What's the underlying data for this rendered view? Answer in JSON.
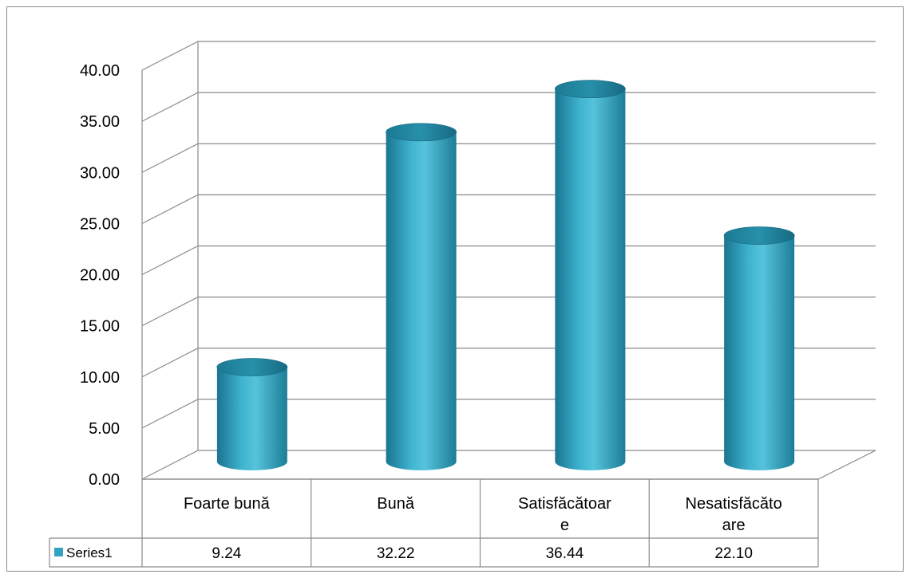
{
  "chart_data": {
    "type": "bar",
    "title": "",
    "xlabel": "",
    "ylabel": "",
    "categories": [
      {
        "lines": [
          "Foarte bună"
        ]
      },
      {
        "lines": [
          "Bună"
        ]
      },
      {
        "lines": [
          "Satisfăcătoar",
          "e"
        ]
      },
      {
        "lines": [
          "Nesatisfăcăto",
          "are"
        ]
      }
    ],
    "series": [
      {
        "name": "Series1",
        "values": [
          9.24,
          32.22,
          36.44,
          22.1
        ],
        "value_labels": [
          "9.24",
          "32.22",
          "36.44",
          "22.10"
        ],
        "color": "#31a3c0"
      }
    ],
    "ylim": [
      0,
      40
    ],
    "y_ticks": [
      "0.00",
      "5.00",
      "10.00",
      "15.00",
      "20.00",
      "25.00",
      "30.00",
      "35.00",
      "40.00"
    ],
    "grid": true,
    "legend": "data-table-left",
    "style": "3d-cylinder"
  }
}
